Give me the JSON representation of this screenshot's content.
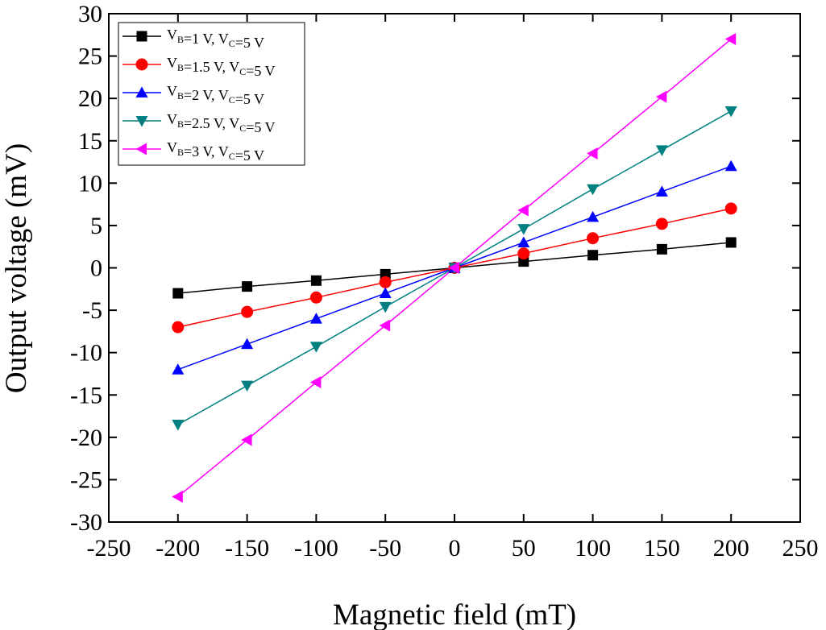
{
  "chart_data": {
    "type": "line",
    "x_label": "Magnetic field (mT)",
    "y_label": "Output voltage (mV)",
    "x": [
      -200,
      -150,
      -100,
      -50,
      0,
      50,
      100,
      150,
      200
    ],
    "series": [
      {
        "name": "VB=1 V, VC=5 V",
        "color": "#000000",
        "marker": "square",
        "values": [
          -3,
          -2.2,
          -1.5,
          -0.75,
          0,
          0.75,
          1.5,
          2.2,
          3
        ]
      },
      {
        "name": "VB=1.5 V, VC=5 V",
        "color": "#ff0000",
        "marker": "circle",
        "values": [
          -7,
          -5.2,
          -3.5,
          -1.7,
          0,
          1.7,
          3.5,
          5.2,
          7
        ]
      },
      {
        "name": "VB=2 V, VC=5 V",
        "color": "#0000ff",
        "marker": "triangle-up",
        "values": [
          -12,
          -9,
          -6,
          -3,
          0,
          3,
          6,
          9,
          12
        ]
      },
      {
        "name": "VB=2.5 V, VC=5 V",
        "color": "#008080",
        "marker": "triangle-down",
        "values": [
          -18.5,
          -13.9,
          -9.3,
          -4.6,
          0,
          4.6,
          9.3,
          13.9,
          18.5
        ]
      },
      {
        "name": "VB=3 V, VC=5 V",
        "color": "#ff00ff",
        "marker": "triangle-left",
        "values": [
          -27,
          -20.3,
          -13.5,
          -6.8,
          0,
          6.8,
          13.5,
          20.2,
          27
        ]
      }
    ],
    "xlim": [
      -250,
      250
    ],
    "xticks": [
      -250,
      -200,
      -150,
      -100,
      -50,
      0,
      50,
      100,
      150,
      200,
      250
    ],
    "ylim": [
      -30,
      30
    ],
    "yticks": [
      -30,
      -25,
      -20,
      -15,
      -10,
      -5,
      0,
      5,
      10,
      15,
      20,
      25,
      30
    ],
    "legend": "upper left"
  }
}
